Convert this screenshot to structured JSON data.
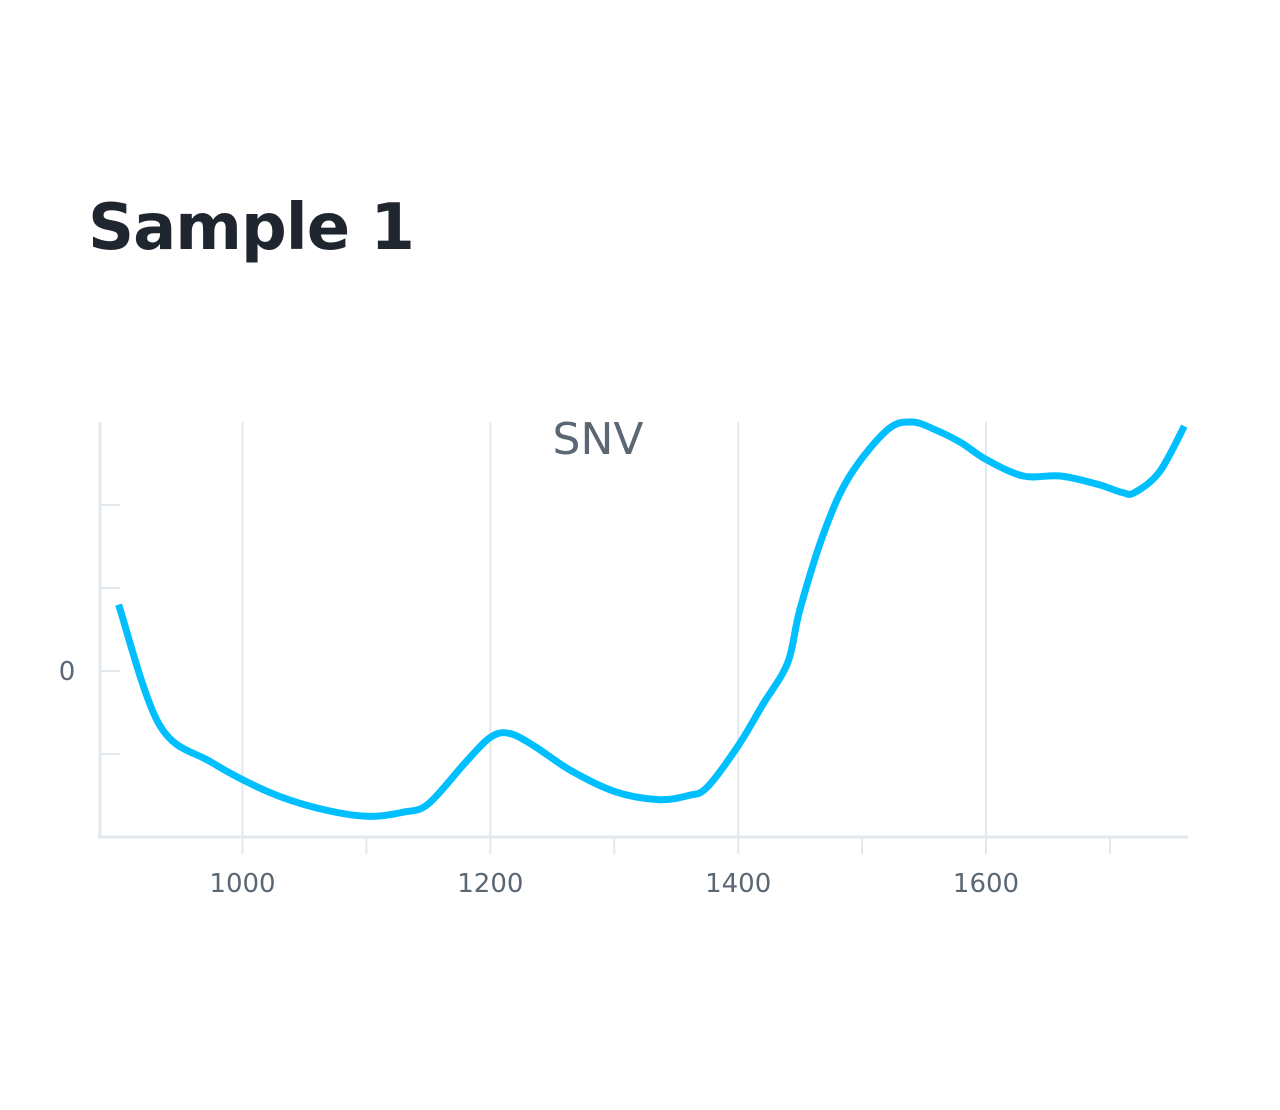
{
  "page": {
    "title": "Sample 1"
  },
  "chart_data": {
    "type": "line",
    "title": "SNV",
    "xlabel": "",
    "ylabel": "",
    "xlim": [
      885,
      1763
    ],
    "ylim": [
      -2,
      3
    ],
    "x_ticks": [
      1000,
      1200,
      1400,
      1600
    ],
    "x_minor_ticks": [
      1100,
      1300,
      1500,
      1700
    ],
    "y_ticks": [
      0
    ],
    "y_minor_ticks": [
      -1,
      1,
      2
    ],
    "grid": "vertical",
    "line_color": "#00bfff",
    "series": [
      {
        "x": [
          900,
          933,
          975,
          1020,
          1060,
          1100,
          1130,
          1150,
          1180,
          1200,
          1215,
          1235,
          1265,
          1300,
          1335,
          1360,
          1375,
          1400,
          1420,
          1440,
          1450,
          1470,
          1490,
          1520,
          1540,
          1560,
          1580,
          1600,
          1630,
          1660,
          1690,
          1710,
          1720,
          1740,
          1760
        ],
        "y": [
          0.8,
          -0.65,
          -1.1,
          -1.45,
          -1.65,
          -1.75,
          -1.7,
          -1.6,
          -1.1,
          -0.8,
          -0.75,
          -0.9,
          -1.2,
          -1.45,
          -1.55,
          -1.5,
          -1.4,
          -0.9,
          -0.4,
          0.1,
          0.75,
          1.7,
          2.35,
          2.9,
          3.0,
          2.9,
          2.75,
          2.55,
          2.35,
          2.35,
          2.25,
          2.15,
          2.15,
          2.4,
          2.95
        ]
      }
    ]
  }
}
